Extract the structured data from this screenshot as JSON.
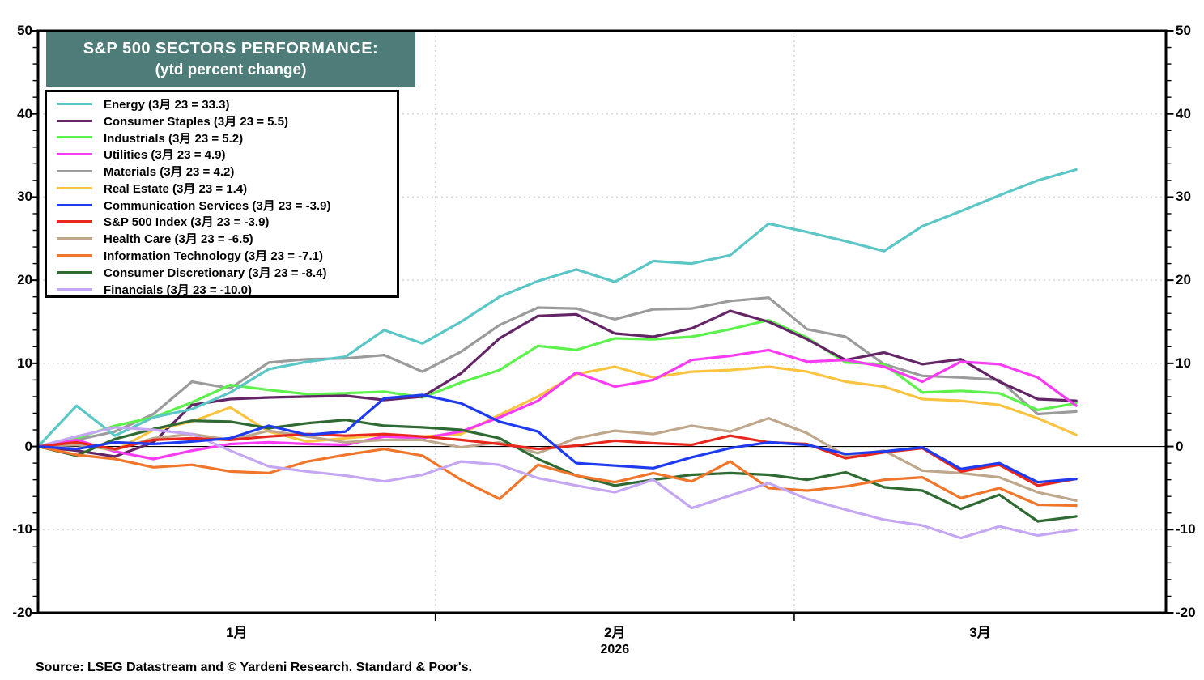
{
  "chart_data": {
    "type": "line",
    "title_line1": "S&P 500 SECTORS PERFORMANCE:",
    "title_line2": "(ytd percent change)",
    "source_note": "Source: LSEG Datastream and © Yardeni Research. Standard & Poor's.",
    "year_label": "2026",
    "ylim": [
      -20,
      50
    ],
    "y_major_ticks": [
      50,
      40,
      30,
      20,
      10,
      0,
      -10,
      -20
    ],
    "y_minor_step": 2,
    "dotted_gridlines_y": [
      40,
      30,
      20,
      10,
      -10
    ],
    "zero_line_y": 0,
    "x_total_days": 88,
    "month_boundary_days": [
      31,
      59
    ],
    "x_tick_labels": [
      {
        "label": "1月",
        "day": 15.5
      },
      {
        "label": "2月",
        "day": 45
      },
      {
        "label": "3月",
        "day": 73.5
      }
    ],
    "year_label_day": 45,
    "grid_color": "#d8d8d8",
    "x_days": [
      0,
      3,
      6,
      9,
      12,
      15,
      18,
      21,
      24,
      27,
      30,
      33,
      36,
      39,
      42,
      45,
      48,
      51,
      54,
      57,
      60,
      63,
      66,
      69,
      72,
      75,
      78,
      81
    ],
    "series": [
      {
        "name": "Energy",
        "legend": "Energy (3月 23 = 33.3)",
        "color": "#5BC6C6",
        "values": [
          0,
          4.9,
          1.3,
          3.5,
          4.5,
          6.5,
          9.3,
          10.2,
          10.8,
          14.0,
          12.4,
          15.0,
          18.0,
          19.9,
          21.3,
          19.8,
          22.3,
          22.0,
          23.0,
          26.8,
          25.8,
          24.7,
          23.5,
          26.5,
          28.3,
          30.2,
          32.0,
          33.3
        ]
      },
      {
        "name": "Consumer Staples",
        "legend": "Consumer Staples (3月 23 = 5.5)",
        "color": "#632566",
        "values": [
          0,
          -0.5,
          -1.2,
          0.5,
          5.0,
          5.7,
          5.9,
          6.0,
          6.1,
          5.6,
          6.0,
          8.8,
          13.0,
          15.7,
          15.9,
          13.6,
          13.2,
          14.2,
          16.3,
          15.0,
          12.9,
          10.4,
          11.3,
          9.9,
          10.5,
          7.8,
          5.7,
          5.5
        ]
      },
      {
        "name": "Industrials",
        "legend": "Industrials (3月 23 = 5.2)",
        "color": "#5CF24B",
        "values": [
          0,
          1.0,
          2.5,
          3.5,
          5.3,
          7.4,
          6.8,
          6.3,
          6.4,
          6.6,
          5.9,
          7.7,
          9.2,
          12.1,
          11.6,
          13.0,
          12.9,
          13.2,
          14.1,
          15.2,
          13.1,
          10.1,
          9.9,
          6.5,
          6.7,
          6.4,
          4.4,
          5.2
        ]
      },
      {
        "name": "Utilities",
        "legend": "Utilities (3月 23 = 4.9)",
        "color": "#F93BF3",
        "values": [
          0,
          0.8,
          -0.6,
          -1.5,
          -0.5,
          0.3,
          0.5,
          0.3,
          0.2,
          1.2,
          1.0,
          1.8,
          3.5,
          5.5,
          8.9,
          7.2,
          8.0,
          10.4,
          10.9,
          11.6,
          10.2,
          10.4,
          9.6,
          7.8,
          10.2,
          9.9,
          8.3,
          4.9
        ]
      },
      {
        "name": "Materials",
        "legend": "Materials (3月 23 = 4.2)",
        "color": "#9B9B9B",
        "values": [
          0,
          0.8,
          1.8,
          3.9,
          7.8,
          7.0,
          10.1,
          10.5,
          10.6,
          11.0,
          9.0,
          11.4,
          14.6,
          16.7,
          16.6,
          15.3,
          16.5,
          16.6,
          17.5,
          17.9,
          14.1,
          13.2,
          9.9,
          8.5,
          8.3,
          8.0,
          3.9,
          4.2
        ]
      },
      {
        "name": "Real Estate",
        "legend": "Real Estate (3月 23 = 1.4)",
        "color": "#FBC440",
        "values": [
          0,
          0.3,
          -0.5,
          2.0,
          3.0,
          4.7,
          1.8,
          0.6,
          1.0,
          1.4,
          1.2,
          1.5,
          3.8,
          6.0,
          8.7,
          9.6,
          8.3,
          9.0,
          9.2,
          9.6,
          9.0,
          7.8,
          7.2,
          5.7,
          5.5,
          5.0,
          3.4,
          1.4
        ]
      },
      {
        "name": "Communication Services",
        "legend": "Communication Services (3月 23 = -3.9)",
        "color": "#1E3BF0",
        "values": [
          0,
          -0.3,
          0.5,
          0.3,
          0.6,
          1.0,
          2.5,
          1.4,
          1.8,
          5.8,
          6.2,
          5.2,
          3.0,
          1.8,
          -2.0,
          -2.3,
          -2.6,
          -1.3,
          -0.2,
          0.5,
          0.2,
          -0.9,
          -0.6,
          -0.1,
          -2.7,
          -2.0,
          -4.3,
          -3.9
        ]
      },
      {
        "name": "S&P 500 Index",
        "legend": "S&P 500 Index (3月 23 = -3.9)",
        "color": "#E8271D",
        "values": [
          0,
          0.5,
          -0.3,
          0.8,
          1.0,
          0.8,
          1.2,
          1.5,
          1.3,
          1.5,
          1.2,
          0.8,
          0.3,
          -0.3,
          0.1,
          0.7,
          0.4,
          0.2,
          1.3,
          0.5,
          0.3,
          -1.4,
          -0.7,
          -0.2,
          -3.0,
          -2.2,
          -4.7,
          -3.9
        ]
      },
      {
        "name": "Health Care",
        "legend": "Health Care (3月 23 = -6.5)",
        "color": "#BFA78C",
        "values": [
          0,
          0.2,
          -0.4,
          1.0,
          1.5,
          0.8,
          1.9,
          1.2,
          0.5,
          0.8,
          0.8,
          -0.1,
          0.5,
          -0.8,
          1.0,
          1.9,
          1.5,
          2.5,
          1.8,
          3.4,
          1.6,
          -1.1,
          -0.5,
          -2.9,
          -3.2,
          -3.7,
          -5.5,
          -6.5
        ]
      },
      {
        "name": "Information Technology",
        "legend": "Information Technology (3月 23 = -7.1)",
        "color": "#F0762B",
        "values": [
          0,
          -1.0,
          -1.5,
          -2.5,
          -2.2,
          -3.0,
          -3.2,
          -1.8,
          -1.0,
          -0.3,
          -1.1,
          -4.0,
          -6.3,
          -2.2,
          -3.5,
          -4.3,
          -3.2,
          -4.2,
          -1.8,
          -5.0,
          -5.3,
          -4.8,
          -4.0,
          -3.7,
          -6.2,
          -5.0,
          -7.0,
          -7.1
        ]
      },
      {
        "name": "Consumer Discretionary",
        "legend": "Consumer Discretionary (3月 23 = -8.4)",
        "color": "#2F6A32",
        "values": [
          0,
          -1.1,
          0.9,
          2.1,
          3.1,
          3.0,
          2.2,
          2.8,
          3.2,
          2.5,
          2.3,
          2.0,
          1.0,
          -1.5,
          -3.5,
          -4.7,
          -4.0,
          -3.4,
          -3.2,
          -3.4,
          -4.0,
          -3.1,
          -4.9,
          -5.3,
          -7.5,
          -5.8,
          -9.0,
          -8.4
        ]
      },
      {
        "name": "Financials",
        "legend": "Financials (3月 23 = -10.0)",
        "color": "#C5A6F2",
        "values": [
          0,
          1.2,
          2.3,
          2.0,
          1.5,
          -0.5,
          -2.4,
          -3.0,
          -3.5,
          -4.2,
          -3.4,
          -1.8,
          -2.2,
          -3.8,
          -4.7,
          -5.5,
          -4.0,
          -7.4,
          -5.9,
          -4.4,
          -6.3,
          -7.6,
          -8.8,
          -9.5,
          -11.0,
          -9.6,
          -10.7,
          -10.0
        ]
      }
    ]
  }
}
